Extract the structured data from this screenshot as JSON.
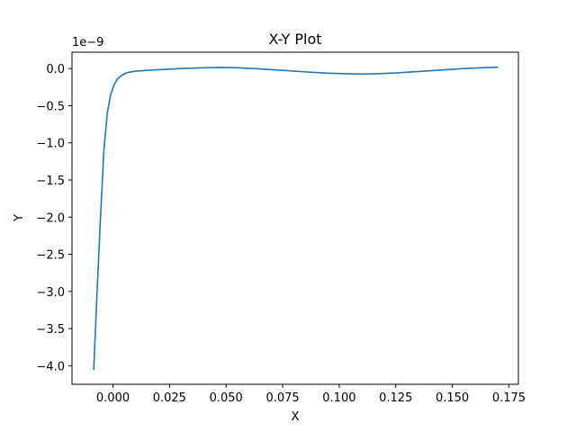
{
  "chart_data": {
    "type": "line",
    "title": "X-Y Plot",
    "xlabel": "X",
    "ylabel": "Y",
    "y_offset_label": "1e−9",
    "xlim": [
      -0.0181,
      0.1792
    ],
    "ylim": [
      -4.25,
      0.22
    ],
    "grid": false,
    "x_ticks": [
      0.0,
      0.025,
      0.05,
      0.075,
      0.1,
      0.125,
      0.15,
      0.175
    ],
    "x_tick_labels": [
      "0.000",
      "0.025",
      "0.050",
      "0.075",
      "0.100",
      "0.125",
      "0.150",
      "0.175"
    ],
    "y_ticks": [
      0.0,
      -0.5,
      -1.0,
      -1.5,
      -2.0,
      -2.5,
      -3.0,
      -3.5,
      -4.0
    ],
    "y_tick_labels": [
      "0.0",
      "−0.5",
      "−1.0",
      "−1.5",
      "−2.0",
      "−2.5",
      "−3.0",
      "−3.5",
      "−4.0"
    ],
    "series": [
      {
        "color": "#1f77b4",
        "x": [
          -0.0085,
          -0.007,
          -0.0055,
          -0.004,
          -0.0025,
          -0.001,
          0.0005,
          0.002,
          0.0035,
          0.005,
          0.007,
          0.01,
          0.015,
          0.02,
          0.03,
          0.04,
          0.048,
          0.055,
          0.065,
          0.075,
          0.085,
          0.095,
          0.105,
          0.11,
          0.115,
          0.125,
          0.135,
          0.145,
          0.155,
          0.165,
          0.17
        ],
        "y": [
          -4.05,
          -3.0,
          -2.0,
          -1.1,
          -0.6,
          -0.35,
          -0.22,
          -0.14,
          -0.1,
          -0.07,
          -0.05,
          -0.035,
          -0.025,
          -0.015,
          0.0,
          0.01,
          0.015,
          0.01,
          -0.005,
          -0.025,
          -0.045,
          -0.062,
          -0.072,
          -0.075,
          -0.072,
          -0.06,
          -0.04,
          -0.02,
          0.0,
          0.013,
          0.018
        ]
      }
    ]
  }
}
